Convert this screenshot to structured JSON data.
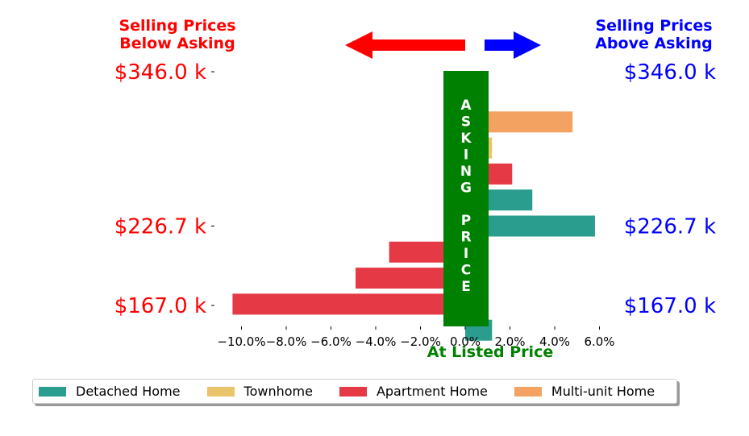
{
  "header": {
    "left_label": "Selling Prices\nBelow Asking",
    "right_label": "Selling Prices\nAbove Asking"
  },
  "center_label": "ASKING PRICE",
  "bottom_label": "At Listed Price",
  "colors": {
    "below": "#ff0000",
    "above": "#0000ff",
    "center": "#008000",
    "Detached Home": "#2a9d8f",
    "Townhome": "#e9c46a",
    "Apartment Home": "#e63946",
    "Multi-unit Home": "#f4a261"
  },
  "legend": {
    "items": [
      {
        "label": "Detached Home",
        "color": "#2a9d8f"
      },
      {
        "label": "Townhome",
        "color": "#e9c46a"
      },
      {
        "label": "Apartment Home",
        "color": "#e63946"
      },
      {
        "label": "Multi-unit Home",
        "color": "#f4a261"
      }
    ]
  },
  "chart_data": {
    "type": "bar",
    "orientation": "horizontal",
    "x_unit": "percent",
    "xlim": [
      -11,
      6.2
    ],
    "xticks": [
      "−10.0%",
      "−8.0%",
      "−6.0%",
      "−4.0%",
      "−2.0%",
      "0.0%",
      "2.0%",
      "4.0%",
      "6.0%"
    ],
    "xtick_values": [
      -10,
      -8,
      -6,
      -4,
      -2,
      0,
      2,
      4,
      6
    ],
    "y_ticks": [
      {
        "label": "$346.0 k",
        "row": 0
      },
      {
        "label": "$226.7 k",
        "row": 5
      },
      {
        "label": "$167.0 k",
        "row": 9
      }
    ],
    "bars": [
      {
        "row": 1,
        "category": "Multi-unit Home",
        "value": 4.8
      },
      {
        "row": 2,
        "category": "Townhome",
        "value": 1.2
      },
      {
        "row": 3,
        "category": "Apartment Home",
        "value": 2.1
      },
      {
        "row": 4,
        "category": "Detached Home",
        "value": 3.0
      },
      {
        "row": 5,
        "category": "Detached Home",
        "value": 5.8
      },
      {
        "row": 6,
        "category": "Apartment Home",
        "value": -3.4
      },
      {
        "row": 7,
        "category": "Apartment Home",
        "value": -4.9
      },
      {
        "row": 8,
        "category": "Apartment Home",
        "value": -10.4
      },
      {
        "row": 9,
        "category": "Detached Home",
        "value": 1.2
      }
    ]
  }
}
